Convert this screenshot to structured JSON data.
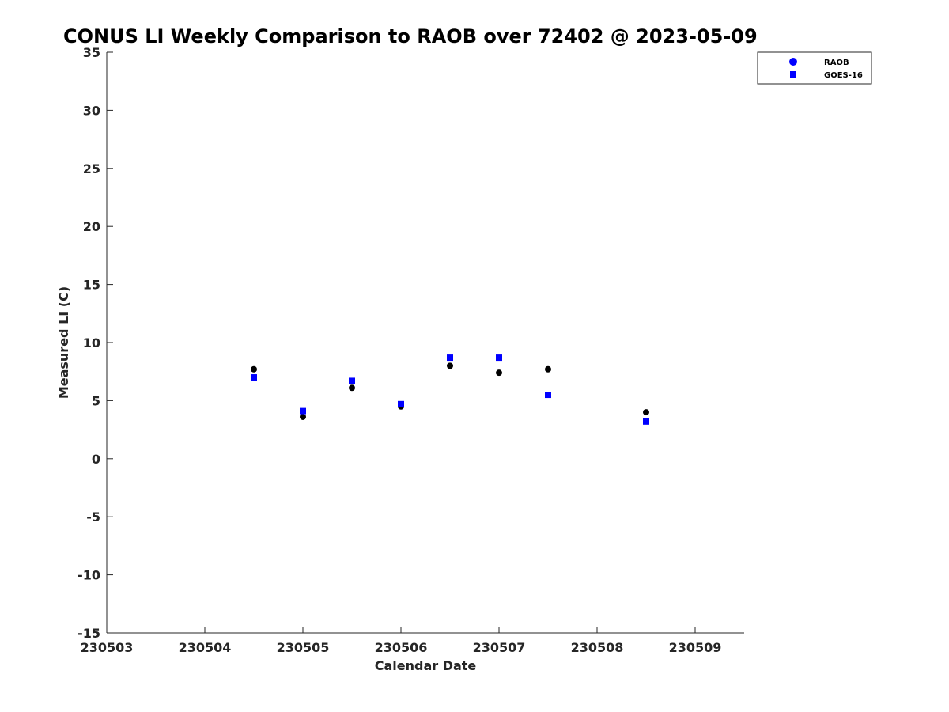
{
  "chart_data": {
    "type": "scatter",
    "title": "CONUS LI Weekly Comparison to RAOB over 72402 @ 2023-05-09",
    "xlabel": "Calendar Date",
    "ylabel": "Measured LI (C)",
    "xlim": [
      230503,
      230509.5
    ],
    "ylim": [
      -15,
      35
    ],
    "x_ticks": [
      230503,
      230504,
      230505,
      230506,
      230507,
      230508,
      230509
    ],
    "x_tick_labels": [
      "230503",
      "230504",
      "230505",
      "230506",
      "230507",
      "230508",
      "230509"
    ],
    "y_ticks": [
      -15,
      -10,
      -5,
      0,
      5,
      10,
      15,
      20,
      25,
      30,
      35
    ],
    "y_tick_labels": [
      "-15",
      "-10",
      "-5",
      "0",
      "5",
      "10",
      "15",
      "20",
      "25",
      "30",
      "35"
    ],
    "grid": false,
    "legend_position": "top-right",
    "series": [
      {
        "name": "RAOB",
        "marker": "circle",
        "color": "#000000",
        "legend_color": "#0000ff",
        "x": [
          230504.5,
          230505,
          230505.5,
          230506,
          230506.5,
          230507,
          230507.5,
          230508.5
        ],
        "y": [
          7.7,
          3.6,
          6.1,
          4.5,
          8.0,
          7.4,
          7.7,
          4.0
        ]
      },
      {
        "name": "GOES-16",
        "marker": "square",
        "color": "#0000ff",
        "legend_color": "#0000ff",
        "x": [
          230504.5,
          230505,
          230505.5,
          230506,
          230506.5,
          230507,
          230507.5,
          230508.5
        ],
        "y": [
          7.0,
          4.1,
          6.7,
          4.7,
          8.7,
          8.7,
          5.5,
          3.2
        ]
      }
    ]
  }
}
